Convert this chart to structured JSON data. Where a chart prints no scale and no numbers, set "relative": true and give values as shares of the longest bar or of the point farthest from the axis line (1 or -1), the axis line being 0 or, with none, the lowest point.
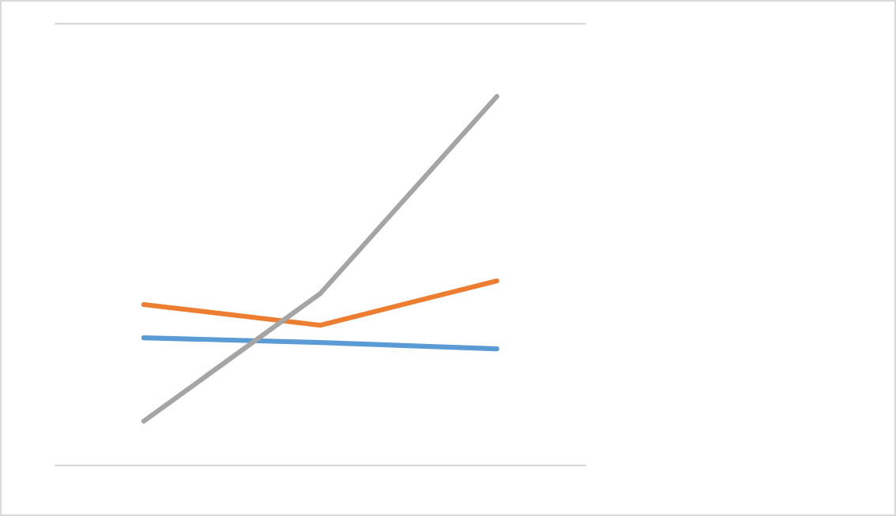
{
  "chart_data": {
    "type": "line",
    "relative": true,
    "categories": [
      null,
      null,
      null
    ],
    "series": [
      {
        "color": "#5b9bd5",
        "values": [
          0.346,
          0.333,
          0.316
        ]
      },
      {
        "color": "#ed7d31",
        "values": [
          0.436,
          0.38,
          0.5
        ]
      },
      {
        "color": "#a5a5a5",
        "values": [
          0.12,
          0.466,
          1
        ]
      }
    ]
  }
}
